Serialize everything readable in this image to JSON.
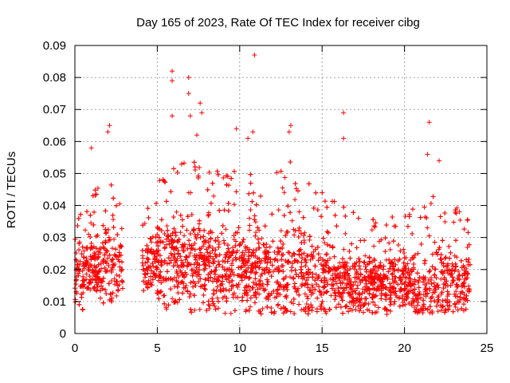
{
  "chart_data": {
    "type": "scatter",
    "title": "Day 165 of 2023, Rate Of TEC Index for receiver cibg",
    "xlabel": "GPS time / hours",
    "ylabel": "ROTI / TECUs",
    "xlim": [
      0,
      25
    ],
    "ylim": [
      0,
      0.09
    ],
    "x_ticks": [
      "0",
      "5",
      "10",
      "15",
      "20",
      "25"
    ],
    "y_ticks": [
      "0",
      "0.01",
      "0.02",
      "0.03",
      "0.04",
      "0.05",
      "0.06",
      "0.07",
      "0.08",
      "0.09"
    ],
    "grid": true,
    "marker": "+",
    "color": "#ff0000",
    "data_gap_hours": [
      2.9,
      4.1
    ],
    "notable_points": [
      {
        "x": 1.0,
        "y": 0.058
      },
      {
        "x": 2.1,
        "y": 0.065
      },
      {
        "x": 2.0,
        "y": 0.063
      },
      {
        "x": 5.9,
        "y": 0.082
      },
      {
        "x": 5.9,
        "y": 0.079
      },
      {
        "x": 5.9,
        "y": 0.068
      },
      {
        "x": 6.9,
        "y": 0.08
      },
      {
        "x": 6.9,
        "y": 0.075
      },
      {
        "x": 7.0,
        "y": 0.068
      },
      {
        "x": 7.6,
        "y": 0.072
      },
      {
        "x": 7.7,
        "y": 0.069
      },
      {
        "x": 7.4,
        "y": 0.062
      },
      {
        "x": 9.8,
        "y": 0.064
      },
      {
        "x": 10.5,
        "y": 0.061
      },
      {
        "x": 10.9,
        "y": 0.087
      },
      {
        "x": 10.8,
        "y": 0.063
      },
      {
        "x": 13.1,
        "y": 0.065
      },
      {
        "x": 13.0,
        "y": 0.063
      },
      {
        "x": 16.3,
        "y": 0.069
      },
      {
        "x": 16.3,
        "y": 0.061
      },
      {
        "x": 21.5,
        "y": 0.066
      },
      {
        "x": 22.1,
        "y": 0.054
      },
      {
        "x": 21.4,
        "y": 0.056
      }
    ],
    "envelope": [
      {
        "x": 0.0,
        "mean": 0.018,
        "upper": 0.032
      },
      {
        "x": 1.0,
        "mean": 0.021,
        "upper": 0.04
      },
      {
        "x": 2.0,
        "mean": 0.022,
        "upper": 0.045
      },
      {
        "x": 2.9,
        "mean": 0.021,
        "upper": 0.04
      },
      {
        "x": 4.1,
        "mean": 0.021,
        "upper": 0.034
      },
      {
        "x": 5.0,
        "mean": 0.022,
        "upper": 0.044
      },
      {
        "x": 6.0,
        "mean": 0.023,
        "upper": 0.048
      },
      {
        "x": 7.0,
        "mean": 0.023,
        "upper": 0.05
      },
      {
        "x": 8.0,
        "mean": 0.022,
        "upper": 0.048
      },
      {
        "x": 9.0,
        "mean": 0.021,
        "upper": 0.046
      },
      {
        "x": 10.0,
        "mean": 0.021,
        "upper": 0.047
      },
      {
        "x": 11.0,
        "mean": 0.02,
        "upper": 0.045
      },
      {
        "x": 12.0,
        "mean": 0.019,
        "upper": 0.045
      },
      {
        "x": 13.0,
        "mean": 0.019,
        "upper": 0.05
      },
      {
        "x": 14.0,
        "mean": 0.018,
        "upper": 0.044
      },
      {
        "x": 15.0,
        "mean": 0.017,
        "upper": 0.04
      },
      {
        "x": 16.0,
        "mean": 0.017,
        "upper": 0.038
      },
      {
        "x": 17.0,
        "mean": 0.016,
        "upper": 0.034
      },
      {
        "x": 18.0,
        "mean": 0.016,
        "upper": 0.033
      },
      {
        "x": 19.0,
        "mean": 0.016,
        "upper": 0.033
      },
      {
        "x": 20.0,
        "mean": 0.016,
        "upper": 0.034
      },
      {
        "x": 21.0,
        "mean": 0.015,
        "upper": 0.036
      },
      {
        "x": 22.0,
        "mean": 0.015,
        "upper": 0.04
      },
      {
        "x": 23.0,
        "mean": 0.016,
        "upper": 0.036
      },
      {
        "x": 24.0,
        "mean": 0.016,
        "upper": 0.033
      }
    ],
    "lower_envelope": 0.006
  }
}
